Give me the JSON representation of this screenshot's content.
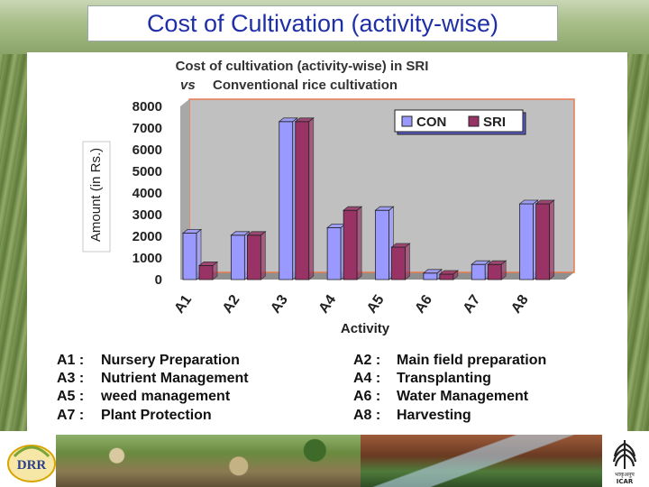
{
  "slide": {
    "title": "Cost of Cultivation (activity-wise)"
  },
  "logos": {
    "left_text": "DRR",
    "right_text": "ICAR"
  },
  "colors": {
    "con": "#9999ff",
    "sri": "#993366",
    "plot_bg": "#c0c0c0",
    "plot_border": "#e87a50",
    "title_text": "#1f2fa6"
  },
  "chart_data": {
    "type": "bar",
    "title_line1": "Cost of cultivation (activity-wise) in SRI",
    "title_line2_vs": "vs",
    "title_line2_rest": "Conventional rice cultivation",
    "xlabel": "Activity",
    "ylabel": "Amount (in Rs.)",
    "ylim": [
      0,
      8000
    ],
    "yticks": [
      "0",
      "1000",
      "2000",
      "3000",
      "4000",
      "5000",
      "6000",
      "7000",
      "8000"
    ],
    "categories": [
      "A1",
      "A2",
      "A3",
      "A4",
      "A5",
      "A6",
      "A7",
      "A8"
    ],
    "series": [
      {
        "name": "CON",
        "values": [
          2150,
          2050,
          7300,
          2400,
          3200,
          300,
          700,
          3500
        ]
      },
      {
        "name": "SRI",
        "values": [
          650,
          2050,
          7300,
          3200,
          1500,
          250,
          700,
          3500
        ]
      }
    ],
    "legend_position": "top-right",
    "grid": false
  },
  "legend_key": [
    {
      "code": "A1 :",
      "label": "Nursery Preparation"
    },
    {
      "code": "A2 :",
      "label": "Main field preparation"
    },
    {
      "code": "A3 :",
      "label": "Nutrient Management"
    },
    {
      "code": "A4 :",
      "label": "Transplanting"
    },
    {
      "code": "A5 :",
      "label": "weed management"
    },
    {
      "code": "A6 :",
      "label": "Water Management"
    },
    {
      "code": "A7 :",
      "label": "Plant Protection"
    },
    {
      "code": "A8 :",
      "label": "Harvesting"
    }
  ]
}
